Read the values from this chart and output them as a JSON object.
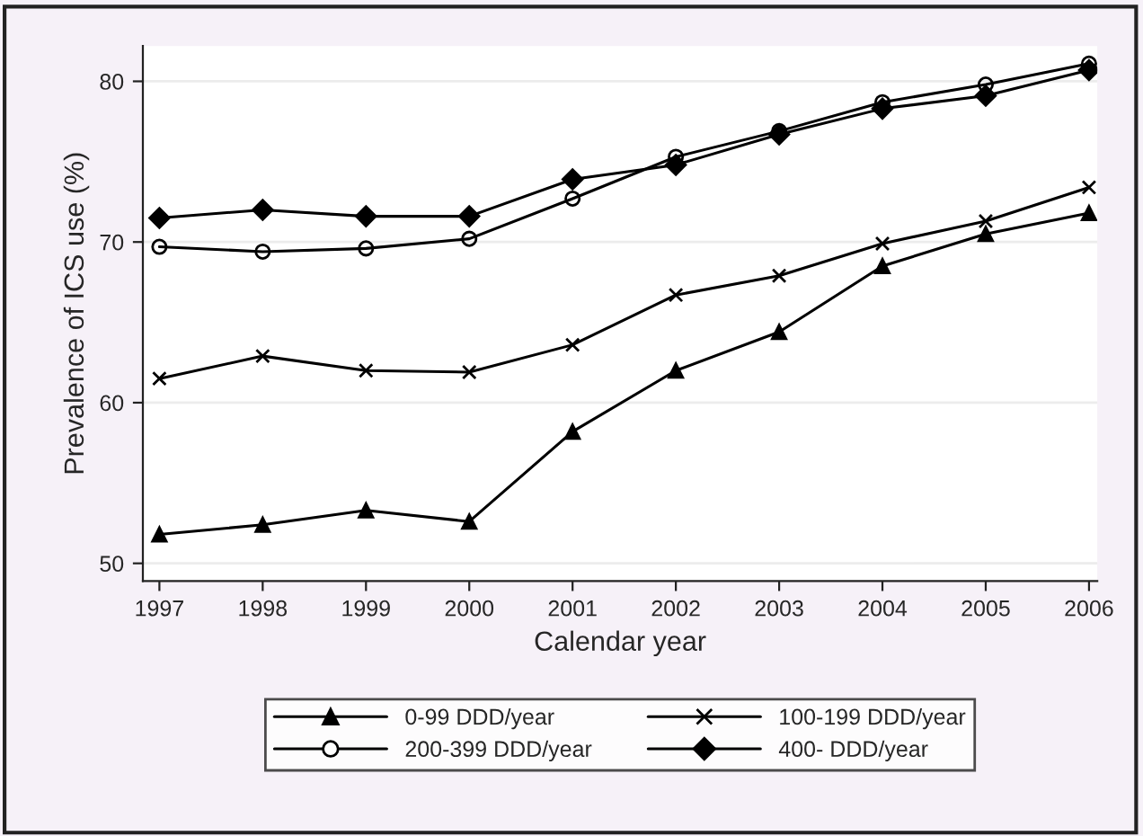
{
  "chart_data": {
    "type": "line",
    "xlabel": "Calendar year",
    "ylabel": "Prevalence of ICS use (%)",
    "x": [
      1997,
      1998,
      1999,
      2000,
      2001,
      2002,
      2003,
      2004,
      2005,
      2006
    ],
    "xlim": [
      1996.84,
      2006.08
    ],
    "xticks": [
      1997,
      1998,
      1999,
      2000,
      2001,
      2002,
      2003,
      2004,
      2005,
      2006
    ],
    "ylim": [
      48.9,
      82.2
    ],
    "yticks": [
      50,
      60,
      70,
      80
    ],
    "grid": "y",
    "legend": "bottom",
    "series": [
      {
        "name": "0-99 DDD/year",
        "color": "#000000",
        "marker": "triangle",
        "values": [
          51.8,
          52.4,
          53.3,
          52.6,
          58.2,
          62.0,
          64.4,
          68.5,
          70.5,
          71.8
        ]
      },
      {
        "name": "100-199 DDD/year",
        "color": "#000000",
        "marker": "cross",
        "values": [
          61.5,
          62.9,
          62.0,
          61.9,
          63.6,
          66.7,
          67.9,
          69.9,
          71.3,
          73.4
        ]
      },
      {
        "name": "200-399 DDD/year",
        "color": "#000000",
        "marker": "circle",
        "values": [
          69.7,
          69.4,
          69.6,
          70.2,
          72.7,
          75.3,
          76.9,
          78.7,
          79.8,
          81.1
        ]
      },
      {
        "name": "400- DDD/year",
        "color": "#000000",
        "marker": "diamond",
        "values": [
          71.5,
          72.0,
          71.6,
          71.6,
          73.9,
          74.8,
          76.7,
          78.3,
          79.1,
          80.7
        ]
      }
    ]
  }
}
